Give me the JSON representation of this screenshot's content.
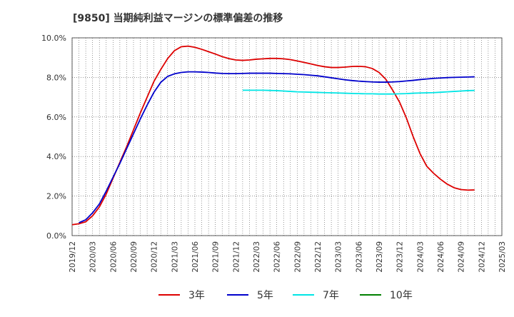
{
  "chart_data": {
    "type": "line",
    "title": "[9850]  当期純利益マージンの標準偏差の推移",
    "ylim": [
      0,
      10
    ],
    "y_ticks": [
      "0.0%",
      "2.0%",
      "4.0%",
      "6.0%",
      "8.0%",
      "10.0%"
    ],
    "x_ticks": [
      "2019/12",
      "2020/03",
      "2020/06",
      "2020/09",
      "2020/12",
      "2021/03",
      "2021/06",
      "2021/09",
      "2021/12",
      "2022/03",
      "2022/06",
      "2022/09",
      "2022/12",
      "2023/03",
      "2023/06",
      "2023/09",
      "2023/12",
      "2024/03",
      "2024/06",
      "2024/09",
      "2024/12",
      "2025/03"
    ],
    "grid": "dotted",
    "legend_position": "bottom",
    "series": [
      {
        "name": "3年",
        "color": "#dd0000",
        "points": [
          [
            "2019/12",
            0.55
          ],
          [
            "2020/01",
            0.6
          ],
          [
            "2020/02",
            0.7
          ],
          [
            "2020/03",
            1.0
          ],
          [
            "2020/04",
            1.45
          ],
          [
            "2020/05",
            2.1
          ],
          [
            "2020/06",
            2.9
          ],
          [
            "2020/07",
            3.7
          ],
          [
            "2020/08",
            4.5
          ],
          [
            "2020/09",
            5.35
          ],
          [
            "2020/10",
            6.2
          ],
          [
            "2020/11",
            7.0
          ],
          [
            "2020/12",
            7.8
          ],
          [
            "2021/01",
            8.4
          ],
          [
            "2021/02",
            8.95
          ],
          [
            "2021/03",
            9.35
          ],
          [
            "2021/04",
            9.55
          ],
          [
            "2021/05",
            9.58
          ],
          [
            "2021/06",
            9.52
          ],
          [
            "2021/07",
            9.42
          ],
          [
            "2021/08",
            9.3
          ],
          [
            "2021/09",
            9.18
          ],
          [
            "2021/10",
            9.05
          ],
          [
            "2021/11",
            8.95
          ],
          [
            "2021/12",
            8.88
          ],
          [
            "2022/01",
            8.86
          ],
          [
            "2022/02",
            8.88
          ],
          [
            "2022/03",
            8.92
          ],
          [
            "2022/04",
            8.94
          ],
          [
            "2022/05",
            8.96
          ],
          [
            "2022/06",
            8.96
          ],
          [
            "2022/07",
            8.94
          ],
          [
            "2022/08",
            8.9
          ],
          [
            "2022/09",
            8.83
          ],
          [
            "2022/10",
            8.76
          ],
          [
            "2022/11",
            8.68
          ],
          [
            "2022/12",
            8.6
          ],
          [
            "2023/01",
            8.54
          ],
          [
            "2023/02",
            8.5
          ],
          [
            "2023/03",
            8.5
          ],
          [
            "2023/04",
            8.52
          ],
          [
            "2023/05",
            8.55
          ],
          [
            "2023/06",
            8.56
          ],
          [
            "2023/07",
            8.54
          ],
          [
            "2023/08",
            8.45
          ],
          [
            "2023/09",
            8.25
          ],
          [
            "2023/10",
            7.9
          ],
          [
            "2023/11",
            7.35
          ],
          [
            "2023/12",
            6.75
          ],
          [
            "2024/01",
            5.95
          ],
          [
            "2024/02",
            5.0
          ],
          [
            "2024/03",
            4.15
          ],
          [
            "2024/04",
            3.5
          ],
          [
            "2024/05",
            3.15
          ],
          [
            "2024/06",
            2.85
          ],
          [
            "2024/07",
            2.6
          ],
          [
            "2024/08",
            2.42
          ],
          [
            "2024/09",
            2.33
          ],
          [
            "2024/10",
            2.3
          ],
          [
            "2024/11",
            2.31
          ]
        ]
      },
      {
        "name": "5年",
        "color": "#0000cc",
        "points": [
          [
            "2020/01",
            0.65
          ],
          [
            "2020/02",
            0.8
          ],
          [
            "2020/03",
            1.15
          ],
          [
            "2020/04",
            1.6
          ],
          [
            "2020/05",
            2.25
          ],
          [
            "2020/06",
            2.95
          ],
          [
            "2020/07",
            3.65
          ],
          [
            "2020/08",
            4.4
          ],
          [
            "2020/09",
            5.15
          ],
          [
            "2020/10",
            5.9
          ],
          [
            "2020/11",
            6.6
          ],
          [
            "2020/12",
            7.25
          ],
          [
            "2021/01",
            7.75
          ],
          [
            "2021/02",
            8.05
          ],
          [
            "2021/03",
            8.18
          ],
          [
            "2021/04",
            8.25
          ],
          [
            "2021/05",
            8.28
          ],
          [
            "2021/06",
            8.28
          ],
          [
            "2021/07",
            8.27
          ],
          [
            "2021/08",
            8.25
          ],
          [
            "2021/09",
            8.22
          ],
          [
            "2021/10",
            8.2
          ],
          [
            "2021/11",
            8.19
          ],
          [
            "2021/12",
            8.19
          ],
          [
            "2022/01",
            8.2
          ],
          [
            "2022/02",
            8.21
          ],
          [
            "2022/03",
            8.21
          ],
          [
            "2022/04",
            8.21
          ],
          [
            "2022/05",
            8.21
          ],
          [
            "2022/06",
            8.2
          ],
          [
            "2022/07",
            8.19
          ],
          [
            "2022/08",
            8.18
          ],
          [
            "2022/09",
            8.16
          ],
          [
            "2022/10",
            8.14
          ],
          [
            "2022/11",
            8.11
          ],
          [
            "2022/12",
            8.08
          ],
          [
            "2023/01",
            8.03
          ],
          [
            "2023/02",
            7.98
          ],
          [
            "2023/03",
            7.93
          ],
          [
            "2023/04",
            7.88
          ],
          [
            "2023/05",
            7.84
          ],
          [
            "2023/06",
            7.81
          ],
          [
            "2023/07",
            7.79
          ],
          [
            "2023/08",
            7.77
          ],
          [
            "2023/09",
            7.76
          ],
          [
            "2023/10",
            7.76
          ],
          [
            "2023/11",
            7.77
          ],
          [
            "2023/12",
            7.79
          ],
          [
            "2024/01",
            7.82
          ],
          [
            "2024/02",
            7.85
          ],
          [
            "2024/03",
            7.89
          ],
          [
            "2024/04",
            7.92
          ],
          [
            "2024/05",
            7.95
          ],
          [
            "2024/06",
            7.97
          ],
          [
            "2024/07",
            7.99
          ],
          [
            "2024/08",
            8.0
          ],
          [
            "2024/09",
            8.01
          ],
          [
            "2024/10",
            8.02
          ],
          [
            "2024/11",
            8.03
          ]
        ]
      },
      {
        "name": "7年",
        "color": "#00e5e5",
        "points": [
          [
            "2022/01",
            7.35
          ],
          [
            "2022/02",
            7.35
          ],
          [
            "2022/03",
            7.35
          ],
          [
            "2022/04",
            7.35
          ],
          [
            "2022/05",
            7.34
          ],
          [
            "2022/06",
            7.33
          ],
          [
            "2022/07",
            7.31
          ],
          [
            "2022/08",
            7.29
          ],
          [
            "2022/09",
            7.27
          ],
          [
            "2022/10",
            7.26
          ],
          [
            "2022/11",
            7.25
          ],
          [
            "2022/12",
            7.24
          ],
          [
            "2023/01",
            7.23
          ],
          [
            "2023/02",
            7.22
          ],
          [
            "2023/03",
            7.21
          ],
          [
            "2023/04",
            7.2
          ],
          [
            "2023/05",
            7.19
          ],
          [
            "2023/06",
            7.18
          ],
          [
            "2023/07",
            7.17
          ],
          [
            "2023/08",
            7.17
          ],
          [
            "2023/09",
            7.16
          ],
          [
            "2023/10",
            7.16
          ],
          [
            "2023/11",
            7.16
          ],
          [
            "2023/12",
            7.17
          ],
          [
            "2024/01",
            7.18
          ],
          [
            "2024/02",
            7.2
          ],
          [
            "2024/03",
            7.21
          ],
          [
            "2024/04",
            7.22
          ],
          [
            "2024/05",
            7.23
          ],
          [
            "2024/06",
            7.25
          ],
          [
            "2024/07",
            7.27
          ],
          [
            "2024/08",
            7.29
          ],
          [
            "2024/09",
            7.31
          ],
          [
            "2024/10",
            7.33
          ],
          [
            "2024/11",
            7.34
          ]
        ]
      },
      {
        "name": "10年",
        "color": "#008000",
        "points": []
      }
    ]
  }
}
